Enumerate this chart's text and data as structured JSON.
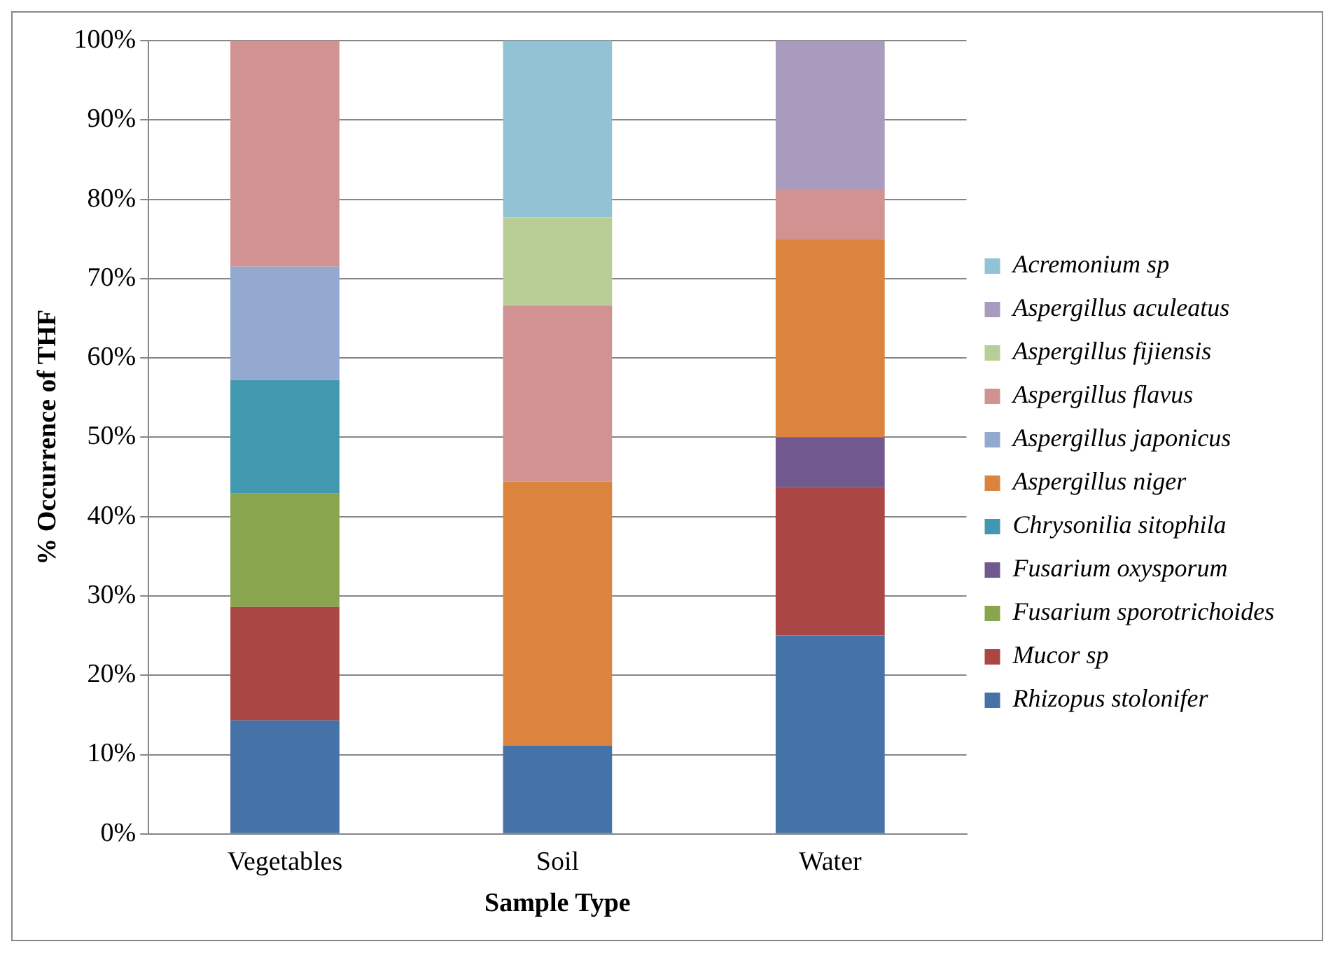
{
  "chart_data": {
    "type": "bar",
    "stacked": true,
    "xlabel": "Sample Type",
    "ylabel": "% Occurrence of THF",
    "categories": [
      "Vegetables",
      "Soil",
      "Water"
    ],
    "ylim": [
      0,
      100
    ],
    "yticks": [
      {
        "value": 0,
        "label": "0%"
      },
      {
        "value": 10,
        "label": "10%"
      },
      {
        "value": 20,
        "label": "20%"
      },
      {
        "value": 30,
        "label": "30%"
      },
      {
        "value": 40,
        "label": "40%"
      },
      {
        "value": 50,
        "label": "50%"
      },
      {
        "value": 60,
        "label": "60%"
      },
      {
        "value": 70,
        "label": "70%"
      },
      {
        "value": 80,
        "label": "80%"
      },
      {
        "value": 90,
        "label": "90%"
      },
      {
        "value": 100,
        "label": "100%"
      }
    ],
    "grid": "y",
    "legend": "right",
    "series": [
      {
        "name": "Rhizopus stolonifer",
        "color": "#4572a7",
        "values": [
          14.3,
          11.1,
          25
        ]
      },
      {
        "name": "Mucor sp",
        "color": "#aa4643",
        "values": [
          14.3,
          null,
          18.7
        ]
      },
      {
        "name": "Fusarium sporotrichoides",
        "color": "#89a54e",
        "values": [
          14.3,
          null,
          null
        ]
      },
      {
        "name": "Fusarium oxysporum",
        "color": "#71588f",
        "values": [
          null,
          null,
          6.3
        ]
      },
      {
        "name": "Chrysonilia sitophila",
        "color": "#4198af",
        "values": [
          14.3,
          null,
          null
        ]
      },
      {
        "name": "Aspergillus niger",
        "color": "#db843d",
        "values": [
          null,
          33.3,
          25
        ]
      },
      {
        "name": "Aspergillus japonicus",
        "color": "#93a9cf",
        "values": [
          14.3,
          null,
          null
        ]
      },
      {
        "name": "Aspergillus flavus",
        "color": "#d19392",
        "values": [
          28.5,
          22.2,
          6.2
        ]
      },
      {
        "name": "Aspergillus fijiensis",
        "color": "#b9cd96",
        "values": [
          null,
          11.1,
          null
        ]
      },
      {
        "name": "Aspergillus aculeatus",
        "color": "#a99bbd",
        "values": [
          null,
          null,
          18.8
        ]
      },
      {
        "name": "Acremonium sp",
        "color": "#92c3d4",
        "values": [
          null,
          22.3,
          null
        ]
      }
    ]
  }
}
